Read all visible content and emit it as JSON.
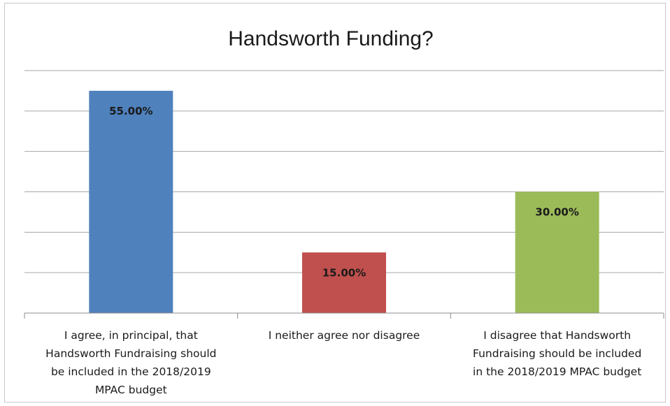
{
  "chart_data": {
    "type": "bar",
    "title": "Handsworth Funding?",
    "categories": [
      "I agree, in principal, that Handsworth Fundraising should be included in the 2018/2019 MPAC budget",
      "I neither agree nor disagree",
      "I disagree that Handsworth Fundraising should be included in the 2018/2019 MPAC budget"
    ],
    "category_lines": [
      [
        "I agree, in principal, that",
        "Handsworth Fundraising should",
        "be included in the 2018/2019",
        "MPAC budget"
      ],
      [
        "I neither agree nor disagree"
      ],
      [
        "I disagree that Handsworth",
        "Fundraising should be included",
        "in the 2018/2019 MPAC budget"
      ]
    ],
    "values": [
      55,
      15,
      30
    ],
    "data_labels": [
      "55.00%",
      "15.00%",
      "30.00%"
    ],
    "colors": [
      "#4f81bd",
      "#c0504d",
      "#9bbb59"
    ],
    "ylim": [
      0,
      60
    ],
    "y_gridline_step": 10,
    "grid": true,
    "xlabel": "",
    "ylabel": "",
    "legend": "none"
  }
}
